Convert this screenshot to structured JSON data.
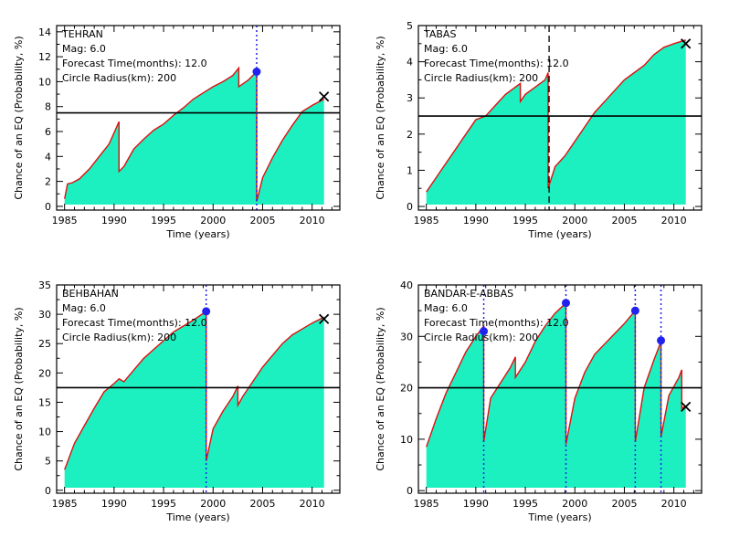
{
  "chart_data": [
    {
      "type": "area",
      "title": "TEHRAN",
      "annotations": [
        "Mag: 6.0",
        "Forecast Time(months): 12.0",
        "Circle Radius(km): 200"
      ],
      "xlabel": "Time (years)",
      "ylabel": "Chance of an EQ (Probability, %)",
      "xlim": [
        1984.2,
        2012.8
      ],
      "ylim": [
        -0.3,
        14.5
      ],
      "xticks": [
        1985,
        1990,
        1995,
        2000,
        2005,
        2010
      ],
      "yticks": [
        0,
        2,
        4,
        6,
        8,
        10,
        12,
        14
      ],
      "threshold": 7.5,
      "x": [
        1985.0,
        1985.3,
        1985.8,
        1986.5,
        1987.5,
        1988.5,
        1989.5,
        1990.5,
        1990.5,
        1991.0,
        1992.0,
        1993.0,
        1994.0,
        1995.0,
        1996.0,
        1997.0,
        1998.0,
        1999.0,
        2000.0,
        2001.0,
        2002.0,
        2002.6,
        2002.6,
        2003.5,
        2004.4,
        2004.4,
        2005.0,
        2006.0,
        2007.0,
        2008.0,
        2009.0,
        2010.0,
        2011.2
      ],
      "y": [
        0.6,
        1.8,
        1.9,
        2.2,
        3.0,
        4.0,
        5.0,
        6.8,
        2.8,
        3.2,
        4.6,
        5.4,
        6.1,
        6.6,
        7.3,
        7.9,
        8.6,
        9.1,
        9.6,
        10.0,
        10.5,
        11.1,
        9.6,
        10.1,
        10.8,
        0.4,
        2.3,
        3.9,
        5.3,
        6.5,
        7.6,
        8.1,
        8.6
      ],
      "events": [
        {
          "x": 2004.4,
          "y": 10.8
        }
      ],
      "end_marker": {
        "x": 2011.2,
        "y": 8.8
      }
    },
    {
      "type": "area",
      "title": "TABAS",
      "annotations": [
        "Mag: 6.0",
        "Forecast Time(months): 12.0",
        "Circle Radius(km): 200"
      ],
      "xlabel": "Time (years)",
      "ylabel": "Chance of an EQ (Probability, %)",
      "xlim": [
        1984.2,
        2012.8
      ],
      "ylim": [
        -0.1,
        5.0
      ],
      "xticks": [
        1985,
        1990,
        1995,
        2000,
        2005,
        2010
      ],
      "yticks": [
        0,
        1,
        2,
        3,
        4,
        5
      ],
      "threshold": 2.5,
      "x": [
        1985.0,
        1986.0,
        1987.0,
        1988.0,
        1989.0,
        1990.0,
        1991.0,
        1992.0,
        1993.0,
        1994.0,
        1994.5,
        1994.5,
        1995.0,
        1996.0,
        1997.0,
        1997.3,
        1997.3,
        1998.0,
        1999.0,
        2000.0,
        2001.0,
        2002.0,
        2003.0,
        2004.0,
        2005.0,
        2006.0,
        2007.0,
        2008.0,
        2009.0,
        2010.0,
        2011.2
      ],
      "y": [
        0.4,
        0.8,
        1.2,
        1.6,
        2.0,
        2.4,
        2.5,
        2.8,
        3.1,
        3.3,
        3.4,
        2.9,
        3.1,
        3.3,
        3.5,
        3.7,
        0.5,
        1.1,
        1.4,
        1.8,
        2.2,
        2.6,
        2.9,
        3.2,
        3.5,
        3.7,
        3.9,
        4.2,
        4.4,
        4.5,
        4.6
      ],
      "events": [
        {
          "x": 1997.4,
          "y": null
        }
      ],
      "end_marker": {
        "x": 2011.2,
        "y": 4.5
      }
    },
    {
      "type": "area",
      "title": "BEHBAHAN",
      "annotations": [
        "Mag: 6.0",
        "Forecast Time(months): 12.0",
        "Circle Radius(km): 200"
      ],
      "xlabel": "Time (years)",
      "ylabel": "Chance of an EQ (Probability, %)",
      "xlim": [
        1984.2,
        2012.8
      ],
      "ylim": [
        -0.5,
        35.0
      ],
      "xticks": [
        1985,
        1990,
        1995,
        2000,
        2005,
        2010
      ],
      "yticks": [
        0,
        5,
        10,
        15,
        20,
        25,
        30,
        35
      ],
      "threshold": 17.5,
      "x": [
        1985.0,
        1986.0,
        1987.0,
        1988.0,
        1989.0,
        1990.0,
        1990.5,
        1991.0,
        1992.0,
        1993.0,
        1994.0,
        1995.0,
        1996.0,
        1997.0,
        1998.0,
        1999.3,
        1999.3,
        2000.0,
        2001.0,
        2002.0,
        2002.5,
        2002.5,
        2003.0,
        2004.0,
        2005.0,
        2006.0,
        2007.0,
        2008.0,
        2009.0,
        2010.0,
        2011.2
      ],
      "y": [
        3.5,
        8.0,
        11.0,
        14.0,
        16.8,
        18.2,
        19.0,
        18.5,
        20.5,
        22.5,
        24.0,
        25.5,
        27.0,
        28.0,
        29.0,
        30.5,
        5.0,
        10.5,
        13.5,
        16.0,
        17.8,
        14.5,
        16.0,
        18.5,
        21.0,
        23.0,
        25.0,
        26.5,
        27.5,
        28.5,
        29.5
      ],
      "events": [
        {
          "x": 1999.3,
          "y": 30.5
        }
      ],
      "end_marker": {
        "x": 2011.2,
        "y": 29.2
      }
    },
    {
      "type": "area",
      "title": "BANDAR-E-ABBAS",
      "annotations": [
        "Mag: 6.0",
        "Forecast Time(months): 12.0",
        "Circle Radius(km): 200"
      ],
      "xlabel": "Time (years)",
      "ylabel": "Chance of an EQ (Probability, %)",
      "xlim": [
        1984.2,
        2012.8
      ],
      "ylim": [
        -0.5,
        40.0
      ],
      "xticks": [
        1985,
        1990,
        1995,
        2000,
        2005,
        2010
      ],
      "yticks": [
        0,
        10,
        20,
        30,
        40
      ],
      "threshold": 20,
      "x": [
        1985.0,
        1986.0,
        1987.0,
        1988.0,
        1989.0,
        1990.0,
        1990.8,
        1990.8,
        1991.5,
        1992.5,
        1993.5,
        1994.0,
        1994.0,
        1995.0,
        1996.0,
        1997.0,
        1998.0,
        1999.1,
        1999.1,
        2000.0,
        2001.0,
        2002.0,
        2003.0,
        2004.0,
        2005.0,
        2006.1,
        2006.1,
        2007.0,
        2008.0,
        2008.7,
        2008.7,
        2009.5,
        2010.5,
        2010.8,
        2010.8,
        2011.2
      ],
      "y": [
        8.5,
        14.0,
        19.0,
        23.0,
        27.0,
        30.0,
        32.0,
        9.5,
        18.0,
        21.0,
        24.0,
        26.0,
        22.0,
        25.0,
        29.0,
        32.0,
        34.5,
        36.5,
        9.0,
        18.0,
        23.0,
        26.5,
        28.5,
        30.5,
        32.5,
        35.0,
        9.5,
        20.0,
        25.5,
        29.0,
        10.5,
        18.5,
        22.0,
        23.5,
        16.0,
        16.5
      ],
      "events": [
        {
          "x": 1990.8,
          "y": 31.0
        },
        {
          "x": 1999.1,
          "y": 36.5
        },
        {
          "x": 2006.1,
          "y": 35.0
        },
        {
          "x": 2008.7,
          "y": 29.2
        }
      ],
      "end_marker": {
        "x": 2011.2,
        "y": 16.3
      }
    }
  ]
}
